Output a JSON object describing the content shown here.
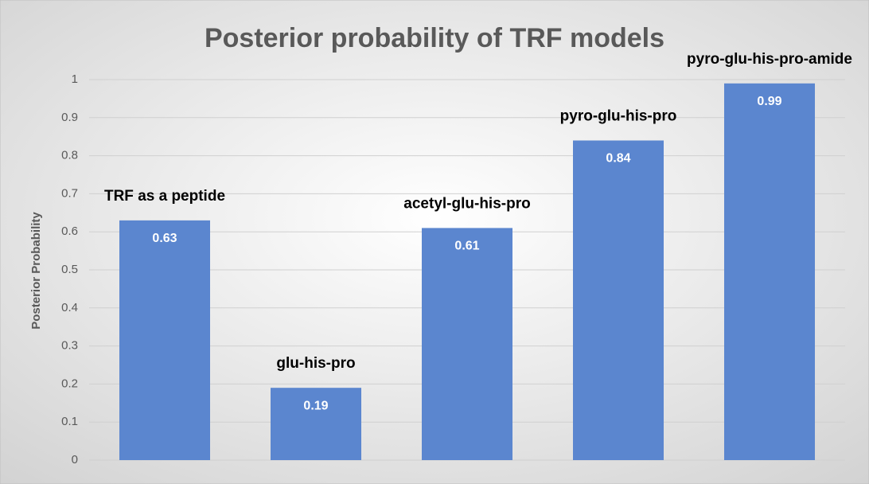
{
  "chart_data": {
    "type": "bar",
    "title": "Posterior probability of TRF models",
    "y_label": "Posterior Probability",
    "categories": [
      "TRF as a peptide",
      "glu-his-pro",
      "acetyl-glu-his-pro",
      "pyro-glu-his-pro",
      "pyro-glu-his-pro-amide"
    ],
    "values": [
      0.63,
      0.19,
      0.61,
      0.84,
      0.99
    ],
    "color": "#5b86cf",
    "ylim": [
      0,
      1
    ],
    "yticks": [
      0,
      0.1,
      0.2,
      0.3,
      0.4,
      0.5,
      0.6,
      0.7,
      0.8,
      0.9,
      1
    ],
    "grid": true
  }
}
